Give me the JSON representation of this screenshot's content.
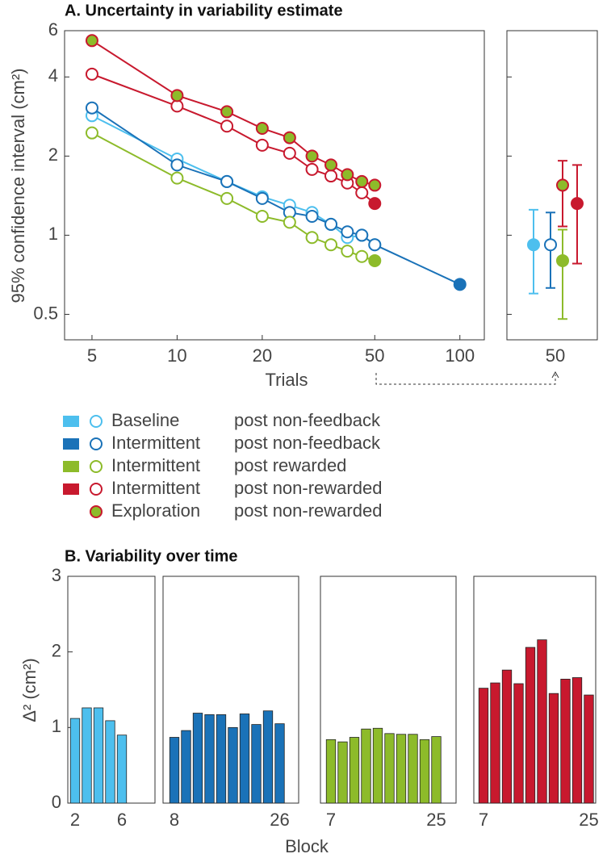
{
  "chart_data": [
    {
      "type": "line",
      "title": "A. Uncertainty in variability estimate",
      "x_label": "Trials",
      "y_label": "95% confidence interval  (cm²)",
      "xscale": "log",
      "yscale": "log",
      "xlim": [
        4,
        122
      ],
      "ylim": [
        0.4,
        6
      ],
      "xticks": [
        5,
        10,
        20,
        50,
        100
      ],
      "yticks": [
        {
          "value": 0.5,
          "label": "0.5"
        },
        1,
        2,
        4,
        6
      ],
      "series": [
        {
          "name": "Baseline",
          "condition": "post non-feedback",
          "color": "#4dbfee",
          "x": [
            5,
            10,
            15,
            20,
            25,
            30,
            35,
            40,
            45,
            50
          ],
          "values": [
            2.85,
            1.95,
            1.6,
            1.4,
            1.3,
            1.22,
            1.1,
            0.98,
            1.0,
            0.92
          ]
        },
        {
          "name": "Intermittent",
          "condition": "post non-feedback",
          "color": "#1a72b8",
          "x": [
            5,
            10,
            15,
            20,
            25,
            30,
            35,
            40,
            45,
            50,
            100
          ],
          "values": [
            3.05,
            1.85,
            1.6,
            1.38,
            1.22,
            1.18,
            1.1,
            1.03,
            1.0,
            0.92,
            0.65
          ]
        },
        {
          "name": "Intermittent",
          "condition": "post rewarded",
          "color": "#8dbb2a",
          "x": [
            5,
            10,
            15,
            20,
            25,
            30,
            35,
            40,
            45,
            50
          ],
          "values": [
            2.45,
            1.65,
            1.38,
            1.18,
            1.12,
            0.98,
            0.92,
            0.87,
            0.83,
            0.8
          ]
        },
        {
          "name": "Intermittent",
          "condition": "post non-rewarded",
          "color": "#c8192e",
          "x": [
            5,
            10,
            15,
            20,
            25,
            30,
            35,
            40,
            45,
            50
          ],
          "values": [
            4.1,
            3.1,
            2.6,
            2.2,
            2.05,
            1.78,
            1.68,
            1.58,
            1.45,
            1.32
          ]
        },
        {
          "name": "Exploration",
          "condition": "post non-rewarded",
          "color": "#8dbb2a",
          "edgecolor": "#c8192e",
          "x": [
            5,
            10,
            15,
            20,
            25,
            30,
            35,
            40,
            45,
            50
          ],
          "values": [
            5.5,
            3.4,
            2.95,
            2.55,
            2.35,
            2.0,
            1.85,
            1.7,
            1.6,
            1.55
          ]
        }
      ]
    },
    {
      "type": "errorbar",
      "yscale": "log",
      "ylim": [
        0.4,
        6
      ],
      "yticks": [
        {
          "value": 0.5,
          "label": "0.5"
        },
        1,
        2,
        4,
        6
      ],
      "categories": [
        "50"
      ],
      "series": [
        {
          "color": "#4dbfee",
          "markerfill": "#4dbfee",
          "values": [
            0.92
          ],
          "lower": [
            0.6
          ],
          "upper": [
            1.25
          ]
        },
        {
          "color": "#1a72b8",
          "markerfill": "#ffffff",
          "values": [
            0.92
          ],
          "lower": [
            0.63
          ],
          "upper": [
            1.22
          ]
        },
        {
          "color": "#8dbb2a",
          "markerfill": "#8dbb2a",
          "values": [
            0.8
          ],
          "lower": [
            0.48
          ],
          "upper": [
            1.05
          ]
        },
        {
          "color": "#c8192e",
          "markerfill": "#8dbb2a",
          "values": [
            1.55
          ],
          "lower": [
            1.08
          ],
          "upper": [
            1.92
          ]
        },
        {
          "color": "#c8192e",
          "markerfill": "#c8192e",
          "values": [
            1.32
          ],
          "lower": [
            0.78
          ],
          "upper": [
            1.85
          ]
        }
      ]
    },
    {
      "type": "bar",
      "title": "B. Variability over time",
      "y_label": "Δ² (cm²)",
      "x_label": "Block",
      "color": "#4dbfee",
      "ylim": [
        0,
        3
      ],
      "yticks": [
        0,
        1,
        2,
        3
      ],
      "categories": [
        "2",
        null,
        null,
        null,
        "6"
      ],
      "values": [
        1.12,
        1.26,
        1.26,
        1.09,
        0.9
      ]
    },
    {
      "type": "bar",
      "color": "#1a72b8",
      "ylim": [
        0,
        3
      ],
      "categories": [
        "8",
        null,
        null,
        null,
        null,
        null,
        null,
        null,
        null,
        "26"
      ],
      "values": [
        0.87,
        0.96,
        1.19,
        1.17,
        1.17,
        1.0,
        1.18,
        1.04,
        1.22,
        1.05
      ]
    },
    {
      "type": "bar",
      "color": "#8dbb2a",
      "ylim": [
        0,
        3
      ],
      "categories": [
        "7",
        null,
        null,
        null,
        null,
        null,
        null,
        null,
        null,
        "25"
      ],
      "values": [
        0.84,
        0.81,
        0.87,
        0.98,
        0.99,
        0.92,
        0.91,
        0.91,
        0.84,
        0.88
      ]
    },
    {
      "type": "bar",
      "color": "#c8192e",
      "ylim": [
        0,
        3
      ],
      "categories": [
        "7",
        null,
        null,
        null,
        null,
        null,
        null,
        null,
        null,
        "25"
      ],
      "values": [
        1.52,
        1.59,
        1.76,
        1.58,
        2.06,
        2.16,
        1.45,
        1.64,
        1.66,
        1.43
      ]
    }
  ]
}
